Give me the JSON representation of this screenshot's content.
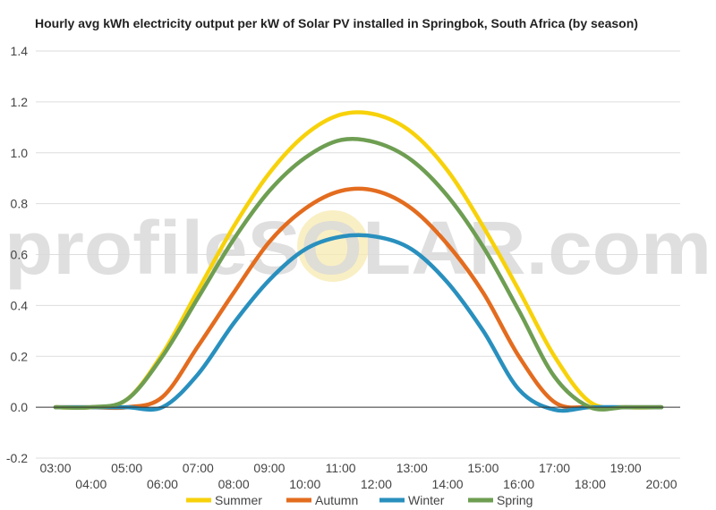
{
  "chart_data": {
    "type": "line",
    "title": "Hourly avg kWh electricity output per kW of Solar PV installed in Springbok, South Africa (by season)",
    "watermark": "profileSOLAR.com",
    "xlabel": "",
    "ylabel": "",
    "ylim": [
      -0.2,
      1.4
    ],
    "y_ticks": [
      "-0.2",
      "0.0",
      "0.2",
      "0.4",
      "0.6",
      "0.8",
      "1.0",
      "1.2",
      "1.4"
    ],
    "x": [
      "03:00",
      "04:00",
      "05:00",
      "06:00",
      "07:00",
      "08:00",
      "09:00",
      "10:00",
      "11:00",
      "12:00",
      "13:00",
      "14:00",
      "15:00",
      "16:00",
      "17:00",
      "18:00",
      "19:00",
      "20:00"
    ],
    "grid": true,
    "legend_position": "bottom",
    "colors": {
      "Summer": "#f7d20b",
      "Autumn": "#e36c1f",
      "Winter": "#2990be",
      "Spring": "#6e9e52",
      "grid": "#dddddd",
      "zero_line": "#333333",
      "watermark_sun": "#f7e9b0"
    },
    "series": [
      {
        "name": "Summer",
        "values": [
          0.0,
          0.0,
          0.03,
          0.21,
          0.46,
          0.71,
          0.92,
          1.07,
          1.15,
          1.15,
          1.08,
          0.93,
          0.71,
          0.46,
          0.2,
          0.02,
          0.0,
          0.0
        ]
      },
      {
        "name": "Autumn",
        "values": [
          0.0,
          0.0,
          0.0,
          0.04,
          0.24,
          0.45,
          0.65,
          0.78,
          0.85,
          0.85,
          0.78,
          0.64,
          0.45,
          0.2,
          0.02,
          0.0,
          0.0,
          0.0
        ]
      },
      {
        "name": "Winter",
        "values": [
          0.0,
          0.0,
          0.0,
          0.0,
          0.13,
          0.33,
          0.5,
          0.62,
          0.67,
          0.67,
          0.62,
          0.49,
          0.3,
          0.07,
          -0.01,
          0.0,
          0.0,
          0.0
        ]
      },
      {
        "name": "Spring",
        "values": [
          0.0,
          0.0,
          0.03,
          0.2,
          0.43,
          0.66,
          0.85,
          0.98,
          1.05,
          1.04,
          0.97,
          0.83,
          0.63,
          0.38,
          0.12,
          0.0,
          0.0,
          0.0
        ]
      }
    ]
  }
}
